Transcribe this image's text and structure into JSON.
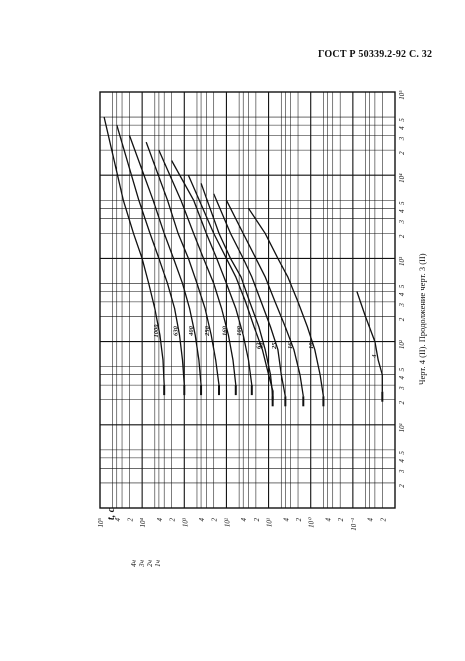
{
  "header": "ГОСТ Р 50339.2-92 С. 32",
  "caption": "Черт. 4 (II). Продолжение черт. 3 (II)",
  "chart_data": {
    "type": "line",
    "title": "",
    "x_axis": {
      "scale": "log",
      "range": [
        1,
        100000
      ],
      "tick_labels": [
        "2",
        "3",
        "4",
        "5",
        "10¹",
        "2",
        "3",
        "4",
        "5",
        "10²",
        "2",
        "3",
        "4",
        "5",
        "10³",
        "2",
        "3",
        "4",
        "5",
        "10⁴",
        "2",
        "3",
        "4",
        "5",
        "10⁵"
      ],
      "label": "Ї, А"
    },
    "y_axis": {
      "scale": "log",
      "range": [
        0.01,
        100000
      ],
      "label": "t, с",
      "tick_labels": [
        "10⁵",
        "4",
        "2",
        "10⁴",
        "4",
        "2",
        "10³",
        "4",
        "2",
        "10²",
        "4",
        "2",
        "10¹",
        "4",
        "2",
        "10⁰",
        "4",
        "2",
        "10⁻¹",
        "4",
        "2"
      ]
    },
    "side_notes": [
      "4ч",
      "3ч",
      "2ч",
      "1ч"
    ],
    "series": [
      {
        "name": "4",
        "x": [
          25,
          40,
          60,
          100,
          200,
          400
        ],
        "y": [
          0.02,
          0.02,
          0.025,
          0.03,
          0.05,
          0.08
        ]
      },
      {
        "name": "10",
        "x": [
          22,
          40,
          80,
          150,
          300,
          600,
          1000,
          2000,
          4000
        ],
        "y": [
          0.5,
          0.6,
          0.8,
          1.2,
          2.0,
          3.5,
          6,
          12,
          30
        ]
      },
      {
        "name": "16",
        "x": [
          22,
          40,
          80,
          150,
          300,
          600,
          1000,
          2000,
          5000
        ],
        "y": [
          1.5,
          1.8,
          2.5,
          4,
          7,
          12,
          20,
          40,
          100
        ]
      },
      {
        "name": "25",
        "x": [
          22,
          40,
          80,
          150,
          300,
          600,
          1000,
          2000,
          6000
        ],
        "y": [
          4,
          5,
          6,
          9,
          15,
          25,
          40,
          80,
          200
        ]
      },
      {
        "name": "40",
        "x": [
          22,
          40,
          80,
          150,
          300,
          600,
          1000,
          2000,
          8000
        ],
        "y": [
          8,
          9,
          12,
          17,
          28,
          45,
          80,
          150,
          400
        ]
      },
      {
        "name": "63",
        "x": [
          26,
          40,
          80,
          150,
          300,
          600,
          1000,
          2000,
          10000
        ],
        "y": [
          8,
          10,
          14,
          22,
          35,
          60,
          100,
          200,
          800
        ]
      },
      {
        "name": "100",
        "x": [
          30,
          60,
          120,
          250,
          500,
          1000,
          2000,
          5000,
          15000
        ],
        "y": [
          25,
          30,
          40,
          60,
          100,
          170,
          300,
          600,
          2000
        ]
      },
      {
        "name": "160",
        "x": [
          30,
          60,
          120,
          250,
          500,
          1000,
          2000,
          5000,
          20000
        ],
        "y": [
          60,
          70,
          90,
          130,
          200,
          350,
          600,
          1200,
          4000
        ]
      },
      {
        "name": "250",
        "x": [
          30,
          60,
          120,
          250,
          500,
          1000,
          2000,
          5000,
          25000
        ],
        "y": [
          150,
          180,
          230,
          320,
          500,
          800,
          1400,
          2500,
          8000
        ]
      },
      {
        "name": "400",
        "x": [
          30,
          60,
          120,
          250,
          500,
          1000,
          2000,
          5000,
          30000
        ],
        "y": [
          400,
          450,
          550,
          750,
          1100,
          1800,
          3000,
          5500,
          20000
        ]
      },
      {
        "name": "630",
        "x": [
          30,
          60,
          120,
          250,
          500,
          1000,
          2000,
          5000,
          40000
        ],
        "y": [
          1000,
          1100,
          1300,
          1700,
          2500,
          4000,
          6500,
          12000,
          40000
        ]
      },
      {
        "name": "1000",
        "x": [
          30,
          60,
          120,
          250,
          500,
          1000,
          2000,
          5000,
          50000
        ],
        "y": [
          3000,
          3200,
          3800,
          5000,
          7000,
          10000,
          16000,
          28000,
          80000
        ]
      }
    ]
  }
}
